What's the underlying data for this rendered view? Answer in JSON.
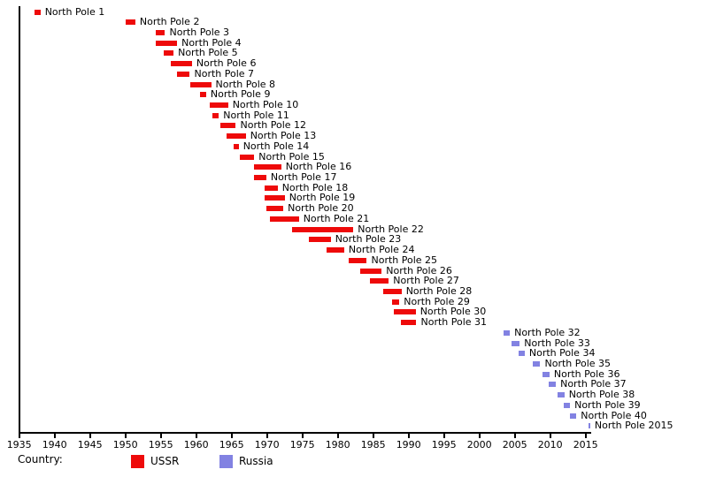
{
  "chart_data": {
    "type": "bar",
    "subtype": "gantt-timeline",
    "title": "",
    "x_axis": {
      "min": 1935,
      "max": 2016,
      "tick_interval": 5,
      "tick_years": [
        1935,
        1940,
        1945,
        1950,
        1955,
        1960,
        1965,
        1970,
        1975,
        1980,
        1985,
        1990,
        1995,
        2000,
        2005,
        2010,
        2015
      ]
    },
    "legend": {
      "label": "Country:",
      "position": "bottom",
      "entries": [
        {
          "name": "USSR",
          "color": "#ee0a0a"
        },
        {
          "name": "Russia",
          "color": "#8282e2"
        }
      ]
    },
    "stations": [
      {
        "label": "North Pole 1",
        "country": "USSR",
        "start": 1937.1,
        "end": 1938.0
      },
      {
        "label": "North Pole 2",
        "country": "USSR",
        "start": 1950.0,
        "end": 1951.4
      },
      {
        "label": "North Pole 3",
        "country": "USSR",
        "start": 1954.3,
        "end": 1955.6
      },
      {
        "label": "North Pole 4",
        "country": "USSR",
        "start": 1954.3,
        "end": 1957.3
      },
      {
        "label": "North Pole 5",
        "country": "USSR",
        "start": 1955.4,
        "end": 1956.8
      },
      {
        "label": "North Pole 6",
        "country": "USSR",
        "start": 1956.4,
        "end": 1959.4
      },
      {
        "label": "North Pole 7",
        "country": "USSR",
        "start": 1957.3,
        "end": 1959.1
      },
      {
        "label": "North Pole 8",
        "country": "USSR",
        "start": 1959.1,
        "end": 1962.1
      },
      {
        "label": "North Pole 9",
        "country": "USSR",
        "start": 1960.5,
        "end": 1961.4
      },
      {
        "label": "North Pole 10",
        "country": "USSR",
        "start": 1961.9,
        "end": 1964.5
      },
      {
        "label": "North Pole 11",
        "country": "USSR",
        "start": 1962.3,
        "end": 1963.2
      },
      {
        "label": "North Pole 12",
        "country": "USSR",
        "start": 1963.4,
        "end": 1965.6
      },
      {
        "label": "North Pole 13",
        "country": "USSR",
        "start": 1964.3,
        "end": 1967.0
      },
      {
        "label": "North Pole 14",
        "country": "USSR",
        "start": 1965.3,
        "end": 1966.0
      },
      {
        "label": "North Pole 15",
        "country": "USSR",
        "start": 1966.2,
        "end": 1968.2
      },
      {
        "label": "North Pole 16",
        "country": "USSR",
        "start": 1968.2,
        "end": 1972.0
      },
      {
        "label": "North Pole 17",
        "country": "USSR",
        "start": 1968.2,
        "end": 1969.9
      },
      {
        "label": "North Pole 18",
        "country": "USSR",
        "start": 1969.6,
        "end": 1971.5
      },
      {
        "label": "North Pole 19",
        "country": "USSR",
        "start": 1969.6,
        "end": 1972.5
      },
      {
        "label": "North Pole 20",
        "country": "USSR",
        "start": 1969.9,
        "end": 1972.3
      },
      {
        "label": "North Pole 21",
        "country": "USSR",
        "start": 1970.4,
        "end": 1974.5
      },
      {
        "label": "North Pole 22",
        "country": "USSR",
        "start": 1973.5,
        "end": 1982.2
      },
      {
        "label": "North Pole 23",
        "country": "USSR",
        "start": 1975.9,
        "end": 1979.0
      },
      {
        "label": "North Pole 24",
        "country": "USSR",
        "start": 1978.4,
        "end": 1980.9
      },
      {
        "label": "North Pole 25",
        "country": "USSR",
        "start": 1981.5,
        "end": 1984.1
      },
      {
        "label": "North Pole 26",
        "country": "USSR",
        "start": 1983.2,
        "end": 1986.2
      },
      {
        "label": "North Pole 27",
        "country": "USSR",
        "start": 1984.5,
        "end": 1987.2
      },
      {
        "label": "North Pole 28",
        "country": "USSR",
        "start": 1986.4,
        "end": 1989.0
      },
      {
        "label": "North Pole 29",
        "country": "USSR",
        "start": 1987.6,
        "end": 1988.7
      },
      {
        "label": "North Pole 30",
        "country": "USSR",
        "start": 1987.9,
        "end": 1991.0
      },
      {
        "label": "North Pole 31",
        "country": "USSR",
        "start": 1988.9,
        "end": 1991.1
      },
      {
        "label": "North Pole 32",
        "country": "Russia",
        "start": 2003.4,
        "end": 2004.3
      },
      {
        "label": "North Pole 33",
        "country": "Russia",
        "start": 2004.5,
        "end": 2005.7
      },
      {
        "label": "North Pole 34",
        "country": "Russia",
        "start": 2005.5,
        "end": 2006.4
      },
      {
        "label": "North Pole 35",
        "country": "Russia",
        "start": 2007.5,
        "end": 2008.6
      },
      {
        "label": "North Pole 36",
        "country": "Russia",
        "start": 2008.9,
        "end": 2009.9
      },
      {
        "label": "North Pole 37",
        "country": "Russia",
        "start": 2009.8,
        "end": 2010.8
      },
      {
        "label": "North Pole 38",
        "country": "Russia",
        "start": 2011.0,
        "end": 2012.0
      },
      {
        "label": "North Pole 39",
        "country": "Russia",
        "start": 2011.9,
        "end": 2012.8
      },
      {
        "label": "North Pole 40",
        "country": "Russia",
        "start": 2012.8,
        "end": 2013.7
      },
      {
        "label": "North Pole 2015",
        "country": "Russia",
        "start": 2015.35,
        "end": 2015.65
      }
    ]
  }
}
